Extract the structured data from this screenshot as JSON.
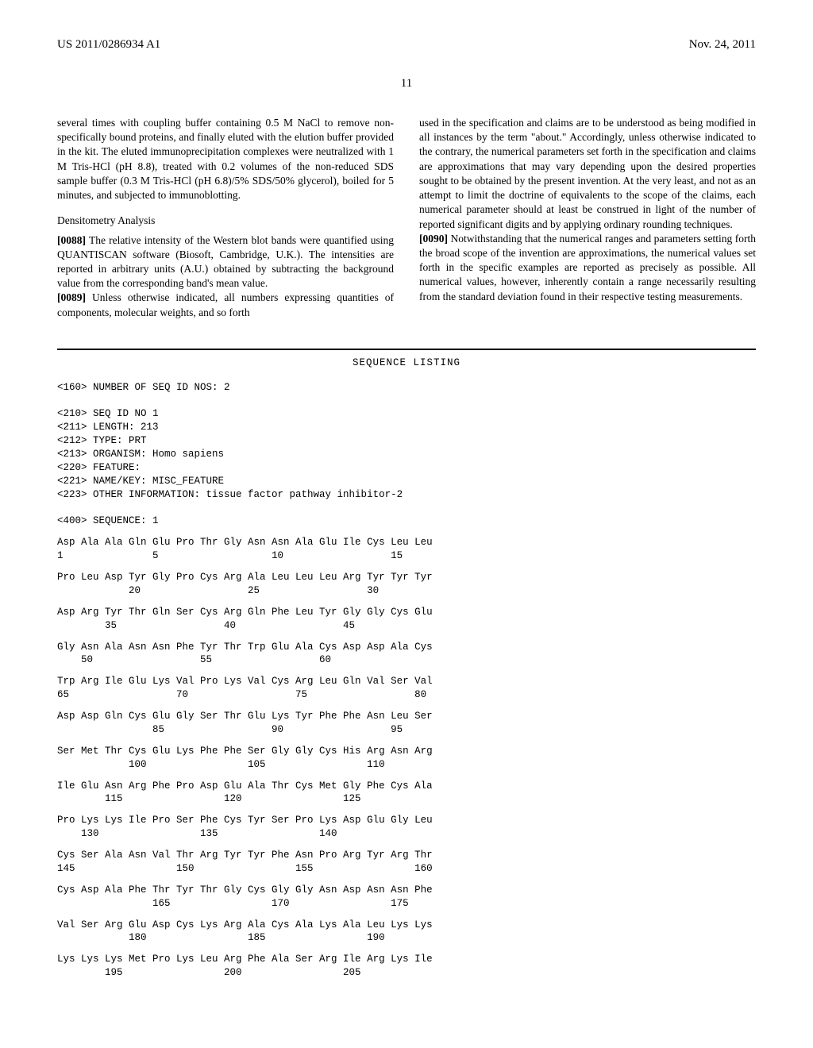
{
  "header": {
    "pub_number": "US 2011/0286934 A1",
    "pub_date": "Nov. 24, 2011",
    "page_number": "11"
  },
  "left_column": {
    "p0": "several times with coupling buffer containing 0.5 M NaCl to remove non-specifically bound proteins, and finally eluted with the elution buffer provided in the kit. The eluted immunoprecipitation complexes were neutralized with 1 M Tris-HCl (pH 8.8), treated with 0.2 volumes of the non-reduced SDS sample buffer (0.3 M Tris-HCl (pH 6.8)/5% SDS/50% glycerol), boiled for 5 minutes, and subjected to immunoblotting.",
    "sub1": "Densitometry Analysis",
    "p88_num": "[0088]",
    "p88": "   The relative intensity of the Western blot bands were quantified using QUANTISCAN software (Biosoft, Cambridge, U.K.). The intensities are reported in arbitrary units (A.U.) obtained by subtracting the background value from the corresponding band's mean value.",
    "p89_num": "[0089]",
    "p89": "   Unless otherwise indicated, all numbers expressing quantities of components, molecular weights, and so forth"
  },
  "right_column": {
    "p_cont": "used in the specification and claims are to be understood as being modified in all instances by the term \"about.\" Accordingly, unless otherwise indicated to the contrary, the numerical parameters set forth in the specification and claims are approximations that may vary depending upon the desired properties sought to be obtained by the present invention. At the very least, and not as an attempt to limit the doctrine of equivalents to the scope of the claims, each numerical parameter should at least be construed in light of the number of reported significant digits and by applying ordinary rounding techniques.",
    "p90_num": "[0090]",
    "p90": "   Notwithstanding that the numerical ranges and parameters setting forth the broad scope of the invention are approximations, the numerical values set forth in the specific examples are reported as precisely as possible. All numerical values, however, inherently contain a range necessarily resulting from the standard deviation found in their respective testing measurements."
  },
  "sequence": {
    "title": "SEQUENCE LISTING",
    "meta_lines": [
      "<160> NUMBER OF SEQ ID NOS: 2",
      "",
      "<210> SEQ ID NO 1",
      "<211> LENGTH: 213",
      "<212> TYPE: PRT",
      "<213> ORGANISM: Homo sapiens",
      "<220> FEATURE:",
      "<221> NAME/KEY: MISC_FEATURE",
      "<223> OTHER INFORMATION: tissue factor pathway inhibitor-2",
      "",
      "<400> SEQUENCE: 1"
    ],
    "rows": [
      {
        "aa": "Asp Ala Ala Gln Glu Pro Thr Gly Asn Asn Ala Glu Ile Cys Leu Leu",
        "nums": "1               5                   10                  15"
      },
      {
        "aa": "Pro Leu Asp Tyr Gly Pro Cys Arg Ala Leu Leu Leu Arg Tyr Tyr Tyr",
        "nums": "            20                  25                  30"
      },
      {
        "aa": "Asp Arg Tyr Thr Gln Ser Cys Arg Gln Phe Leu Tyr Gly Gly Cys Glu",
        "nums": "        35                  40                  45"
      },
      {
        "aa": "Gly Asn Ala Asn Asn Phe Tyr Thr Trp Glu Ala Cys Asp Asp Ala Cys",
        "nums": "    50                  55                  60"
      },
      {
        "aa": "Trp Arg Ile Glu Lys Val Pro Lys Val Cys Arg Leu Gln Val Ser Val",
        "nums": "65                  70                  75                  80"
      },
      {
        "aa": "Asp Asp Gln Cys Glu Gly Ser Thr Glu Lys Tyr Phe Phe Asn Leu Ser",
        "nums": "                85                  90                  95"
      },
      {
        "aa": "Ser Met Thr Cys Glu Lys Phe Phe Ser Gly Gly Cys His Arg Asn Arg",
        "nums": "            100                 105                 110"
      },
      {
        "aa": "Ile Glu Asn Arg Phe Pro Asp Glu Ala Thr Cys Met Gly Phe Cys Ala",
        "nums": "        115                 120                 125"
      },
      {
        "aa": "Pro Lys Lys Ile Pro Ser Phe Cys Tyr Ser Pro Lys Asp Glu Gly Leu",
        "nums": "    130                 135                 140"
      },
      {
        "aa": "Cys Ser Ala Asn Val Thr Arg Tyr Tyr Phe Asn Pro Arg Tyr Arg Thr",
        "nums": "145                 150                 155                 160"
      },
      {
        "aa": "Cys Asp Ala Phe Thr Tyr Thr Gly Cys Gly Gly Asn Asp Asn Asn Phe",
        "nums": "                165                 170                 175"
      },
      {
        "aa": "Val Ser Arg Glu Asp Cys Lys Arg Ala Cys Ala Lys Ala Leu Lys Lys",
        "nums": "            180                 185                 190"
      },
      {
        "aa": "Lys Lys Lys Met Pro Lys Leu Arg Phe Ala Ser Arg Ile Arg Lys Ile",
        "nums": "        195                 200                 205"
      }
    ]
  }
}
